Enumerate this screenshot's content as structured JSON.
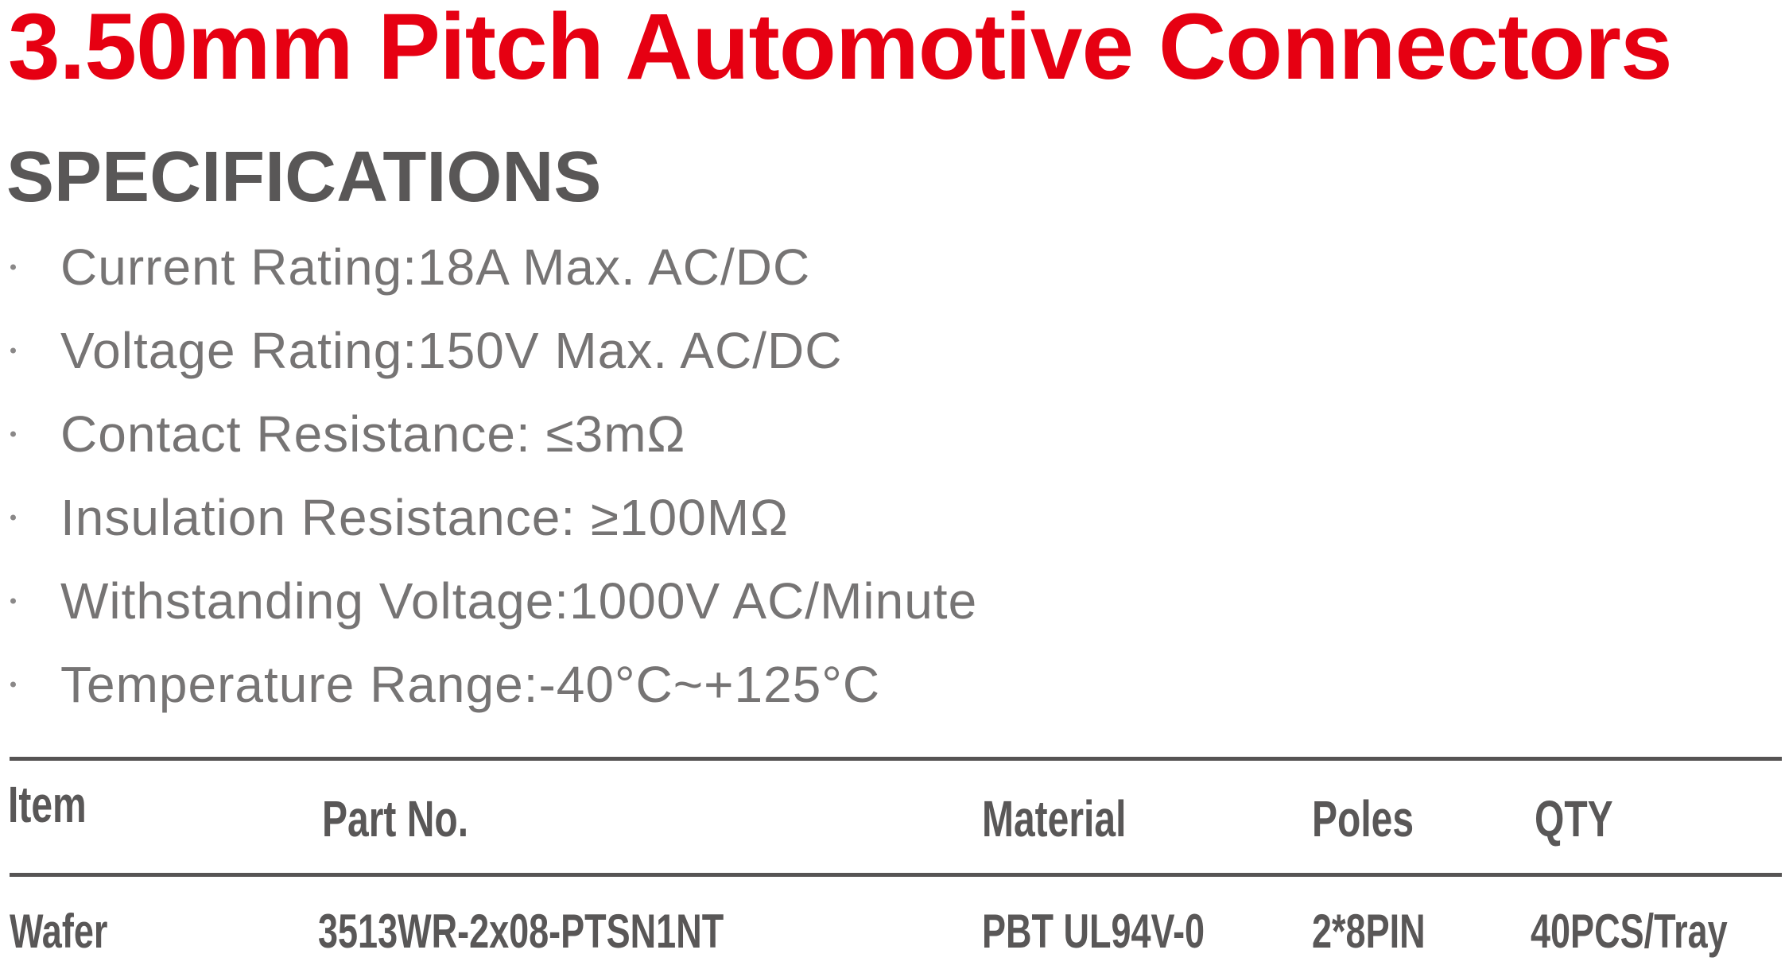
{
  "title": "3.50mm Pitch Automotive Connectors",
  "colors": {
    "accent_red": "#E60012",
    "heading_gray": "#595757",
    "list_gray": "#767474",
    "rule_gray": "#565454"
  },
  "specs": {
    "heading": "SPECIFICATIONS",
    "items": [
      "Current Rating:18A Max. AC/DC",
      "Voltage Rating:150V Max. AC/DC",
      "Contact Resistance: ≤3mΩ",
      "Insulation Resistance: ≥100MΩ",
      "Withstanding Voltage:1000V AC/Minute",
      "Temperature Range:-40°C~+125°C"
    ]
  },
  "table": {
    "headers": [
      "Item",
      "Part No.",
      "Material",
      "Poles",
      "QTY"
    ],
    "rows": [
      [
        "Wafer",
        "3513WR-2x08-PTSN1NT",
        "PBT UL94V-0",
        "2*8PIN",
        "40PCS/Tray"
      ]
    ]
  }
}
